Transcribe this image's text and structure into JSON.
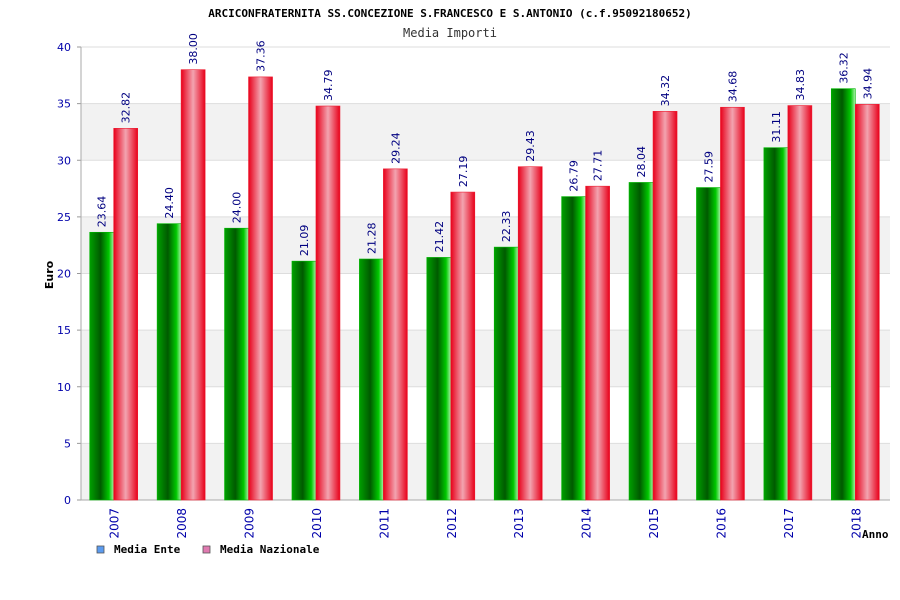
{
  "chart_data": {
    "type": "bar",
    "title": "ARCICONFRATERNITA SS.CONCEZIONE S.FRANCESCO E S.ANTONIO (c.f.95092180652)",
    "subtitle": "Media Importi",
    "xlabel": "Anno",
    "ylabel": "Euro",
    "ylim": [
      0,
      40
    ],
    "yticks": [
      0,
      5,
      10,
      15,
      20,
      25,
      30,
      35,
      40
    ],
    "categories": [
      "2007",
      "2008",
      "2009",
      "2010",
      "2011",
      "2012",
      "2013",
      "2014",
      "2015",
      "2016",
      "2017",
      "2018"
    ],
    "series": [
      {
        "name": "Media Ente",
        "values": [
          23.64,
          24.4,
          24.0,
          21.09,
          21.28,
          21.42,
          22.33,
          26.79,
          28.04,
          27.59,
          31.11,
          36.32
        ],
        "labels": [
          "23.64",
          "24.40",
          "24.00",
          "21.09",
          "21.28",
          "21.42",
          "22.33",
          "26.79",
          "28.04",
          "27.59",
          "31.11",
          "36.32"
        ],
        "color": "#00b400",
        "legend_color": "#5b9bef"
      },
      {
        "name": "Media Nazionale",
        "values": [
          32.82,
          38.0,
          37.36,
          34.79,
          29.24,
          27.19,
          29.43,
          27.71,
          34.32,
          34.68,
          34.83,
          34.94
        ],
        "labels": [
          "32.82",
          "38.00",
          "37.36",
          "34.79",
          "29.24",
          "27.19",
          "29.43",
          "27.71",
          "34.32",
          "34.68",
          "34.83",
          "34.94"
        ],
        "color": "#ee1c30",
        "legend_color": "#e07ab0"
      }
    ],
    "grid": true,
    "legend_placement": "bottom-left",
    "colors": {
      "band": "#f2f2f2",
      "axis_text": "#0000aa",
      "label_text": "#000080",
      "grid": "#dddddd"
    }
  }
}
